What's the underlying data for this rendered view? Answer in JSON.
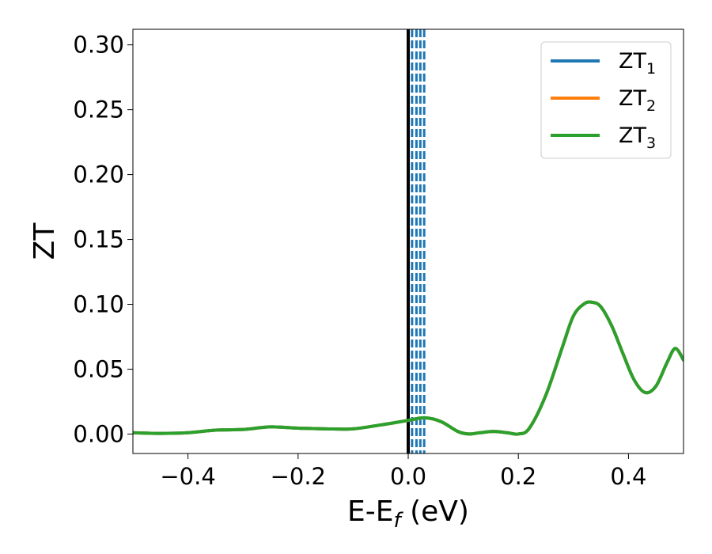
{
  "chart_data": {
    "type": "line",
    "xlabel": {
      "base": "E-E",
      "sub": "f",
      "suffix": " (eV)"
    },
    "ylabel": "ZT",
    "xlim": [
      -0.5,
      0.5
    ],
    "ylim": [
      -0.015,
      0.312
    ],
    "xticks": [
      {
        "value": -0.4,
        "label": "−0.4"
      },
      {
        "value": -0.2,
        "label": "−0.2"
      },
      {
        "value": 0.0,
        "label": "0.0"
      },
      {
        "value": 0.2,
        "label": "0.2"
      },
      {
        "value": 0.4,
        "label": "0.4"
      }
    ],
    "yticks": [
      {
        "value": 0.0,
        "label": "0.00"
      },
      {
        "value": 0.05,
        "label": "0.05"
      },
      {
        "value": 0.1,
        "label": "0.10"
      },
      {
        "value": 0.15,
        "label": "0.15"
      },
      {
        "value": 0.2,
        "label": "0.20"
      },
      {
        "value": 0.25,
        "label": "0.25"
      },
      {
        "value": 0.3,
        "label": "0.30"
      }
    ],
    "grid": false,
    "legend_position": "top-right",
    "fermi_line": {
      "x": 0.0,
      "color": "#000000"
    },
    "dashed_lines": {
      "x": [
        0.007,
        0.015,
        0.022,
        0.029
      ],
      "color": "#1f77b4"
    },
    "series": [
      {
        "name": "ZT",
        "sub": "1",
        "color": "#1f77b4",
        "x": [
          -0.5,
          -0.45,
          -0.4,
          -0.35,
          -0.3,
          -0.25,
          -0.2,
          -0.15,
          -0.1,
          -0.05,
          0.0,
          0.03,
          0.06,
          0.09,
          0.11,
          0.13,
          0.155,
          0.18,
          0.2,
          0.22,
          0.25,
          0.28,
          0.3,
          0.32,
          0.335,
          0.35,
          0.37,
          0.39,
          0.41,
          0.43,
          0.45,
          0.47,
          0.485,
          0.5
        ],
        "y": [
          0.001,
          0.0005,
          0.001,
          0.003,
          0.0035,
          0.0055,
          0.0045,
          0.004,
          0.004,
          0.007,
          0.0105,
          0.0125,
          0.0095,
          0.002,
          0.0,
          0.001,
          0.002,
          0.001,
          0.0,
          0.0045,
          0.03,
          0.067,
          0.091,
          0.1005,
          0.1015,
          0.098,
          0.083,
          0.062,
          0.042,
          0.032,
          0.037,
          0.055,
          0.066,
          0.057
        ]
      },
      {
        "name": "ZT",
        "sub": "2",
        "color": "#ff7f0e",
        "x": [
          -0.5,
          -0.45,
          -0.4,
          -0.35,
          -0.3,
          -0.25,
          -0.2,
          -0.15,
          -0.1,
          -0.05,
          0.0,
          0.03,
          0.06,
          0.09,
          0.11,
          0.13,
          0.155,
          0.18,
          0.2,
          0.22,
          0.25,
          0.28,
          0.3,
          0.32,
          0.335,
          0.35,
          0.37,
          0.39,
          0.41,
          0.43,
          0.45,
          0.47,
          0.485,
          0.5
        ],
        "y": [
          0.001,
          0.0005,
          0.001,
          0.003,
          0.0035,
          0.0055,
          0.0045,
          0.004,
          0.004,
          0.007,
          0.0105,
          0.0125,
          0.0095,
          0.002,
          0.0,
          0.001,
          0.002,
          0.001,
          0.0,
          0.0045,
          0.03,
          0.067,
          0.091,
          0.1005,
          0.1015,
          0.098,
          0.083,
          0.062,
          0.042,
          0.032,
          0.037,
          0.055,
          0.066,
          0.057
        ]
      },
      {
        "name": "ZT",
        "sub": "3",
        "color": "#2ca02c",
        "x": [
          -0.5,
          -0.45,
          -0.4,
          -0.35,
          -0.3,
          -0.25,
          -0.2,
          -0.15,
          -0.1,
          -0.05,
          0.0,
          0.03,
          0.06,
          0.09,
          0.11,
          0.13,
          0.155,
          0.18,
          0.2,
          0.22,
          0.25,
          0.28,
          0.3,
          0.32,
          0.335,
          0.35,
          0.37,
          0.39,
          0.41,
          0.43,
          0.45,
          0.47,
          0.485,
          0.5
        ],
        "y": [
          0.001,
          0.0005,
          0.001,
          0.003,
          0.0035,
          0.0055,
          0.0045,
          0.004,
          0.004,
          0.007,
          0.0105,
          0.0125,
          0.0095,
          0.002,
          0.0,
          0.001,
          0.002,
          0.001,
          0.0,
          0.0045,
          0.03,
          0.067,
          0.091,
          0.1005,
          0.1015,
          0.098,
          0.083,
          0.062,
          0.042,
          0.032,
          0.037,
          0.055,
          0.066,
          0.057
        ]
      }
    ]
  }
}
